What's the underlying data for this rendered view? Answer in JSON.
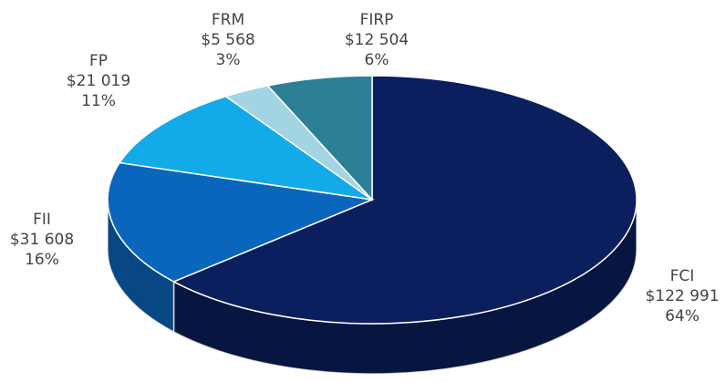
{
  "chart_data": {
    "type": "pie",
    "categories": [
      "FCI",
      "FII",
      "FP",
      "FRM",
      "FIRP"
    ],
    "values": [
      122991,
      31608,
      21019,
      5568,
      12504
    ],
    "value_labels": [
      "$122 991",
      "$31 608",
      "$21 019",
      "$5 568",
      "$12 504"
    ],
    "percent_labels": [
      "64%",
      "16%",
      "11%",
      "3%",
      "6%"
    ],
    "colors": [
      "#0b1f5e",
      "#0a66bd",
      "#12aae8",
      "#a3d4e3",
      "#2d7f96"
    ]
  }
}
